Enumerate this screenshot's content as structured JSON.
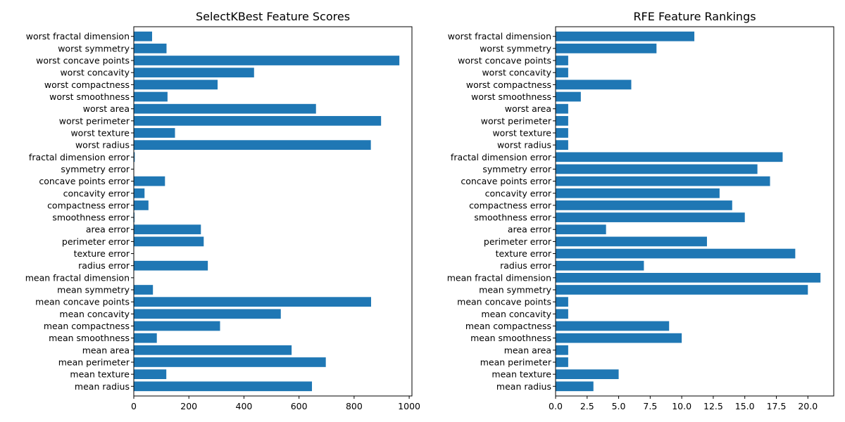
{
  "chart_data": [
    {
      "type": "bar",
      "orientation": "horizontal",
      "title": "SelectKBest Feature Scores",
      "categories": [
        "mean radius",
        "mean texture",
        "mean perimeter",
        "mean area",
        "mean smoothness",
        "mean compactness",
        "mean concavity",
        "mean concave points",
        "mean symmetry",
        "mean fractal dimension",
        "radius error",
        "texture error",
        "perimeter error",
        "area error",
        "smoothness error",
        "compactness error",
        "concavity error",
        "concave points error",
        "symmetry error",
        "fractal dimension error",
        "worst radius",
        "worst texture",
        "worst perimeter",
        "worst area",
        "worst smoothness",
        "worst compactness",
        "worst concavity",
        "worst concave points",
        "worst symmetry",
        "worst fractal dimension"
      ],
      "values": [
        646.98,
        118.1,
        697.24,
        573.06,
        83.65,
        313.23,
        533.79,
        861.68,
        69.53,
        0.09,
        268.84,
        0.04,
        253.9,
        243.65,
        2.56,
        53.25,
        39.01,
        113.26,
        0.02,
        3.47,
        860.78,
        149.6,
        897.94,
        661.6,
        122.47,
        304.34,
        436.69,
        964.39,
        118.86,
        66.44
      ],
      "xlim": [
        0,
        1010
      ],
      "xticks": [
        0,
        200,
        400,
        600,
        800,
        1000
      ],
      "xtick_labels": [
        "0",
        "200",
        "400",
        "600",
        "800",
        "1000"
      ],
      "color": "#1f77b4"
    },
    {
      "type": "bar",
      "orientation": "horizontal",
      "title": "RFE Feature Rankings",
      "categories": [
        "mean radius",
        "mean texture",
        "mean perimeter",
        "mean area",
        "mean smoothness",
        "mean compactness",
        "mean concavity",
        "mean concave points",
        "mean symmetry",
        "mean fractal dimension",
        "radius error",
        "texture error",
        "perimeter error",
        "area error",
        "smoothness error",
        "compactness error",
        "concavity error",
        "concave points error",
        "symmetry error",
        "fractal dimension error",
        "worst radius",
        "worst texture",
        "worst perimeter",
        "worst area",
        "worst smoothness",
        "worst compactness",
        "worst concavity",
        "worst concave points",
        "worst symmetry",
        "worst fractal dimension"
      ],
      "values": [
        3,
        5,
        1,
        1,
        10,
        9,
        1,
        1,
        20,
        21,
        7,
        19,
        12,
        4,
        15,
        14,
        13,
        17,
        16,
        18,
        1,
        1,
        1,
        1,
        2,
        6,
        1,
        1,
        8,
        11
      ],
      "xlim": [
        0,
        22.05
      ],
      "xticks": [
        0,
        2.5,
        5,
        7.5,
        10,
        12.5,
        15,
        17.5,
        20
      ],
      "xtick_labels": [
        "0.0",
        "2.5",
        "5.0",
        "7.5",
        "10.0",
        "12.5",
        "15.0",
        "17.5",
        "20.0"
      ],
      "color": "#1f77b4"
    }
  ]
}
